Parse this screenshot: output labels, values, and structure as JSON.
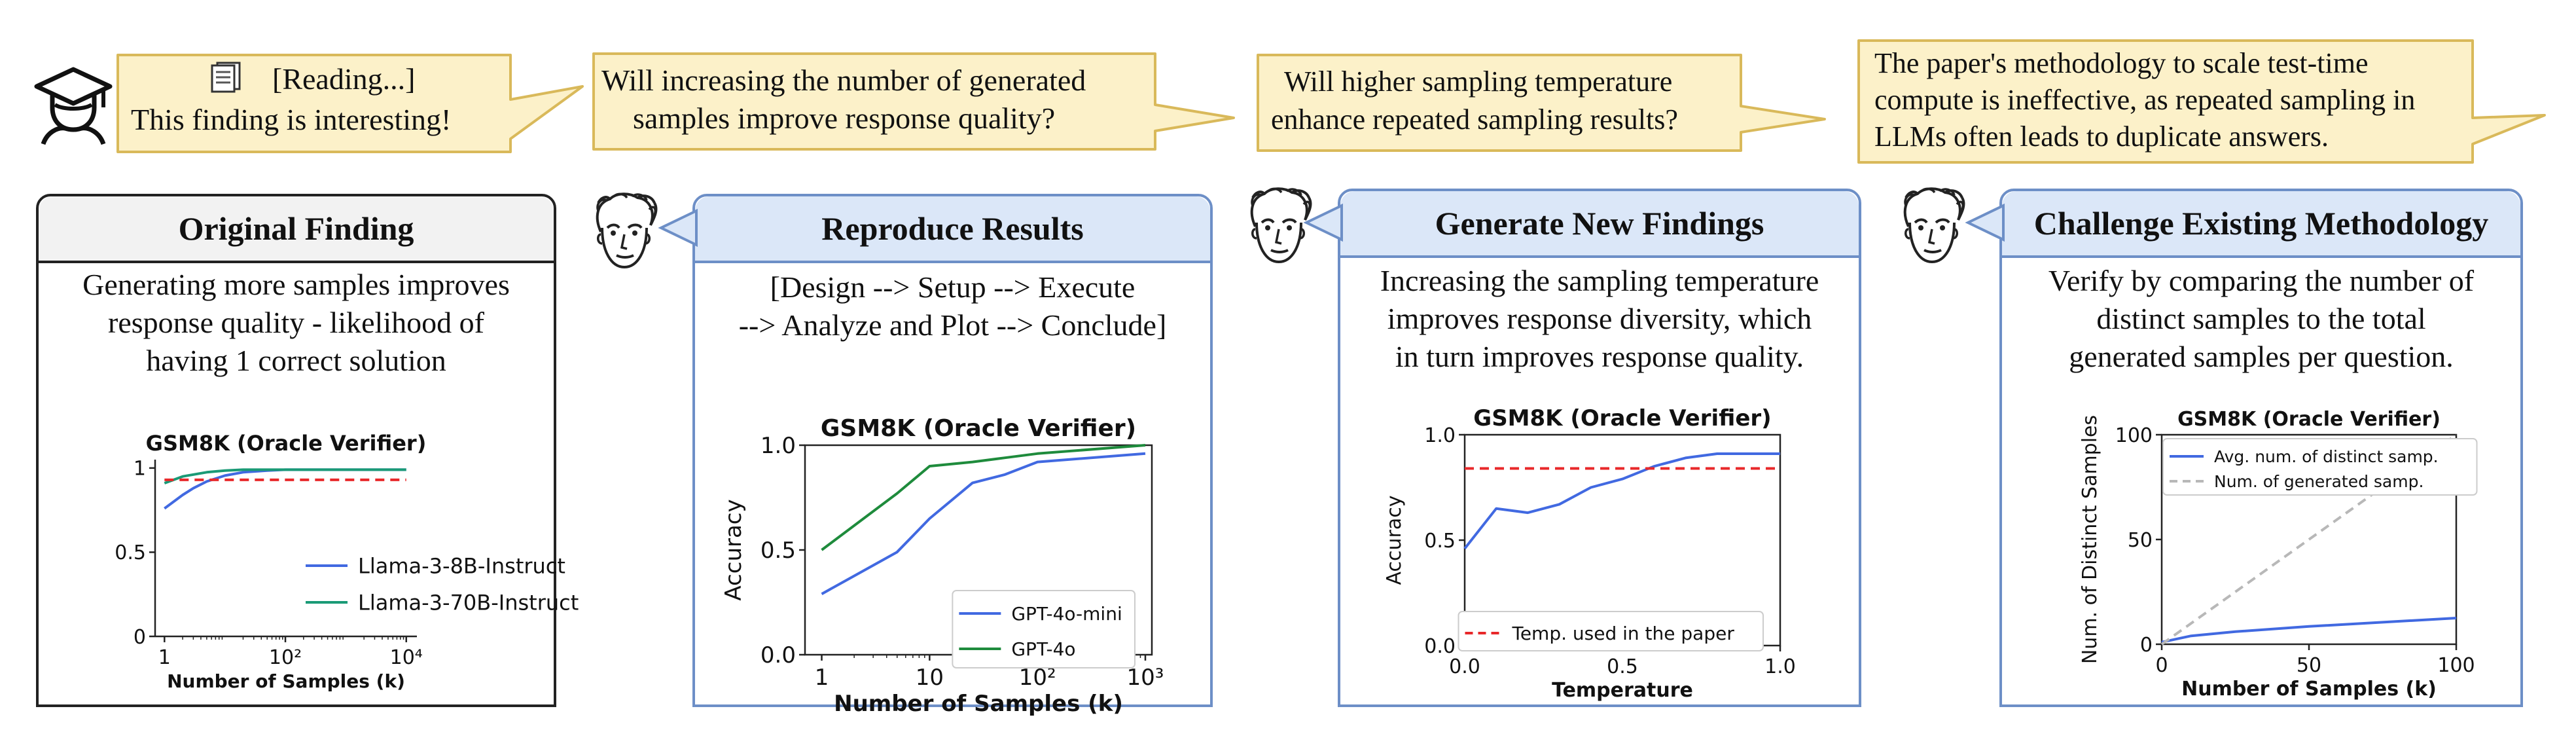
{
  "bubbles": {
    "reading_icon": "document-icon",
    "reading_line1": "[Reading...]",
    "reading_line2": "This finding is interesting!",
    "q1_line1": "Will increasing the number of generated",
    "q1_line2": "samples improve response quality?",
    "q2_line1": "Will higher sampling temperature",
    "q2_line2": "enhance repeated sampling results?",
    "q3_line1": "The paper's methodology to scale test-time",
    "q3_line2": "compute is ineffective, as repeated sampling in",
    "q3_line3": "LLMs often leads to duplicate answers."
  },
  "panels": {
    "original": {
      "title": "Original Finding",
      "line1": "Generating more samples improves",
      "line2": "response quality - likelihood of",
      "line3": "having 1 correct solution"
    },
    "reproduce": {
      "title": "Reproduce Results",
      "line1": "[Design --> Setup --> Execute",
      "line2": "--> Analyze and Plot --> Conclude]"
    },
    "generate": {
      "title": "Generate New Findings",
      "line1": "Increasing the sampling temperature",
      "line2": "improves response diversity, which",
      "line3": "in turn improves response quality."
    },
    "challenge": {
      "title": "Challenge Existing Methodology",
      "line1": "Verify by comparing the number of",
      "line2": "distinct samples to the total",
      "line3": "generated samples per question."
    }
  },
  "colors": {
    "bubble_fill": "#fcf1c9",
    "bubble_stroke": "#d9b95a",
    "panel_border": "#6d8fc7",
    "header_fill": "#dbe7f8",
    "blue": "#4169e1",
    "green": "#1e8b3c",
    "teal": "#1a9a76",
    "red": "#e8282a",
    "gray": "#b8b8b8"
  },
  "chart_data": [
    {
      "type": "line",
      "title": "GSM8K (Oracle Verifier)",
      "xlabel": "Number of Samples (k)",
      "ylabel": "",
      "xscale": "log",
      "xlim": [
        0.7,
        15000
      ],
      "ylim": [
        0,
        1.05
      ],
      "xticks": [
        "1",
        "10²",
        "10⁴"
      ],
      "yticks": [
        "0",
        "0.5",
        "1"
      ],
      "legend_position": "lower-right",
      "series": [
        {
          "name": "Llama-3-8B-Instruct",
          "color": "#4169e1",
          "x": [
            1,
            2,
            3,
            5,
            10,
            20,
            50,
            100,
            1000,
            10000
          ],
          "y": [
            0.76,
            0.84,
            0.88,
            0.92,
            0.955,
            0.975,
            0.985,
            0.99,
            0.99,
            0.99
          ]
        },
        {
          "name": "Llama-3-70B-Instruct",
          "color": "#1a9a76",
          "x": [
            1,
            2,
            5,
            10,
            20,
            50,
            100,
            1000,
            10000
          ],
          "y": [
            0.91,
            0.95,
            0.975,
            0.985,
            0.99,
            0.99,
            0.99,
            0.99,
            0.99
          ]
        },
        {
          "name": "",
          "color": "#e8282a",
          "dashed": true,
          "x": [
            1,
            10000
          ],
          "y": [
            0.93,
            0.93
          ]
        }
      ]
    },
    {
      "type": "line",
      "title": "GSM8K (Oracle Verifier)",
      "xlabel": "Number of Samples (k)",
      "ylabel": "Accuracy",
      "xscale": "log",
      "xlim": [
        0.7,
        1150
      ],
      "ylim": [
        0,
        1.0
      ],
      "xticks": [
        "1",
        "10",
        "10²",
        "10³"
      ],
      "yticks": [
        "0.0",
        "0.5",
        "1.0"
      ],
      "legend_position": "lower-right",
      "series": [
        {
          "name": "GPT-4o-mini",
          "color": "#4169e1",
          "x": [
            1,
            5,
            10,
            25,
            50,
            100,
            1000
          ],
          "y": [
            0.29,
            0.49,
            0.65,
            0.82,
            0.86,
            0.92,
            0.96
          ]
        },
        {
          "name": "GPT-4o",
          "color": "#1e8b3c",
          "x": [
            1,
            5,
            10,
            25,
            50,
            100,
            1000
          ],
          "y": [
            0.5,
            0.77,
            0.9,
            0.92,
            0.94,
            0.96,
            1.0
          ]
        }
      ]
    },
    {
      "type": "line",
      "title": "GSM8K (Oracle Verifier)",
      "xlabel": "Temperature",
      "ylabel": "Accuracy",
      "xlim": [
        0,
        1.0
      ],
      "ylim": [
        0,
        1.0
      ],
      "xticks": [
        "0.0",
        "0.5",
        "1.0"
      ],
      "yticks": [
        "0.0",
        "0.5",
        "1.0"
      ],
      "legend_position": "lower-right",
      "series": [
        {
          "name": "",
          "color": "#4169e1",
          "x": [
            0,
            0.1,
            0.2,
            0.3,
            0.4,
            0.5,
            0.6,
            0.7,
            0.8,
            0.9,
            1.0
          ],
          "y": [
            0.46,
            0.65,
            0.63,
            0.67,
            0.75,
            0.79,
            0.85,
            0.89,
            0.91,
            0.91,
            0.91
          ]
        },
        {
          "name": "Temp. used in the paper",
          "color": "#e8282a",
          "dashed": true,
          "x": [
            0,
            1.0
          ],
          "y": [
            0.84,
            0.84
          ]
        }
      ]
    },
    {
      "type": "line",
      "title": "GSM8K (Oracle Verifier)",
      "xlabel": "Number of Samples (k)",
      "ylabel": "Num. of Distinct Samples",
      "xlim": [
        0,
        100
      ],
      "ylim": [
        0,
        100
      ],
      "xticks": [
        "0",
        "50",
        "100"
      ],
      "yticks": [
        "0",
        "50",
        "100"
      ],
      "legend_position": "upper-left",
      "series": [
        {
          "name": "Avg. num. of distinct samp.",
          "color": "#4169e1",
          "x": [
            0,
            10,
            25,
            50,
            75,
            100
          ],
          "y": [
            1,
            4,
            6,
            8.5,
            10.5,
            12.5
          ]
        },
        {
          "name": "Num. of generated samp.",
          "color": "#b8b8b8",
          "dashed": true,
          "x": [
            0,
            100
          ],
          "y": [
            0,
            100
          ]
        }
      ]
    }
  ]
}
